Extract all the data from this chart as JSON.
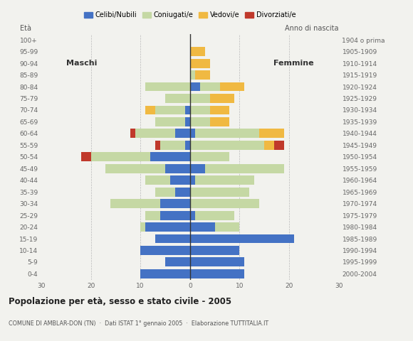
{
  "age_groups": [
    "0-4",
    "5-9",
    "10-14",
    "15-19",
    "20-24",
    "25-29",
    "30-34",
    "35-39",
    "40-44",
    "45-49",
    "50-54",
    "55-59",
    "60-64",
    "65-69",
    "70-74",
    "75-79",
    "80-84",
    "85-89",
    "90-94",
    "95-99",
    "100+"
  ],
  "birth_years": [
    "2000-2004",
    "1995-1999",
    "1990-1994",
    "1985-1989",
    "1980-1984",
    "1975-1979",
    "1970-1974",
    "1965-1969",
    "1960-1964",
    "1955-1959",
    "1950-1954",
    "1945-1949",
    "1940-1944",
    "1935-1939",
    "1930-1934",
    "1925-1929",
    "1920-1924",
    "1915-1919",
    "1910-1914",
    "1905-1909",
    "1904 o prima"
  ],
  "males": {
    "celibi": [
      10,
      5,
      10,
      7,
      9,
      6,
      6,
      3,
      4,
      5,
      8,
      1,
      3,
      1,
      1,
      0,
      0,
      0,
      0,
      0,
      0
    ],
    "coniugati": [
      0,
      0,
      0,
      0,
      1,
      3,
      10,
      4,
      5,
      12,
      12,
      5,
      8,
      6,
      6,
      5,
      9,
      0,
      0,
      0,
      0
    ],
    "vedovi": [
      0,
      0,
      0,
      0,
      0,
      0,
      0,
      0,
      0,
      0,
      0,
      0,
      0,
      0,
      2,
      0,
      0,
      0,
      0,
      0,
      0
    ],
    "divorziati": [
      0,
      0,
      0,
      0,
      0,
      0,
      0,
      0,
      0,
      0,
      2,
      1,
      1,
      0,
      0,
      0,
      0,
      0,
      0,
      0,
      0
    ]
  },
  "females": {
    "nubili": [
      11,
      11,
      10,
      21,
      5,
      1,
      0,
      0,
      1,
      3,
      0,
      0,
      1,
      0,
      0,
      0,
      2,
      0,
      0,
      0,
      0
    ],
    "coniugate": [
      0,
      0,
      0,
      0,
      5,
      8,
      14,
      12,
      12,
      16,
      8,
      15,
      13,
      4,
      4,
      4,
      4,
      1,
      0,
      0,
      0
    ],
    "vedove": [
      0,
      0,
      0,
      0,
      0,
      0,
      0,
      0,
      0,
      0,
      0,
      2,
      5,
      4,
      4,
      5,
      5,
      3,
      4,
      3,
      0
    ],
    "divorziate": [
      0,
      0,
      0,
      0,
      0,
      0,
      0,
      0,
      0,
      0,
      0,
      2,
      0,
      0,
      0,
      0,
      0,
      0,
      0,
      0,
      0
    ]
  },
  "colors": {
    "celibi": "#4472c4",
    "coniugati": "#c5d8a4",
    "vedovi": "#f0b942",
    "divorziati": "#c0392b"
  },
  "xlim": 30,
  "title": "Popolazione per età, sesso e stato civile - 2005",
  "subtitle": "COMUNE DI AMBLAR-DON (TN)  ·  Dati ISTAT 1° gennaio 2005  ·  Elaborazione TUTTITALIA.IT",
  "ylabel_left": "Età",
  "ylabel_right": "Anno di nascita",
  "label_maschi": "Maschi",
  "label_femmine": "Femmine",
  "legend_labels": [
    "Celibi/Nubili",
    "Coniugati/e",
    "Vedovi/e",
    "Divorziati/e"
  ],
  "background_color": "#f2f2ee"
}
